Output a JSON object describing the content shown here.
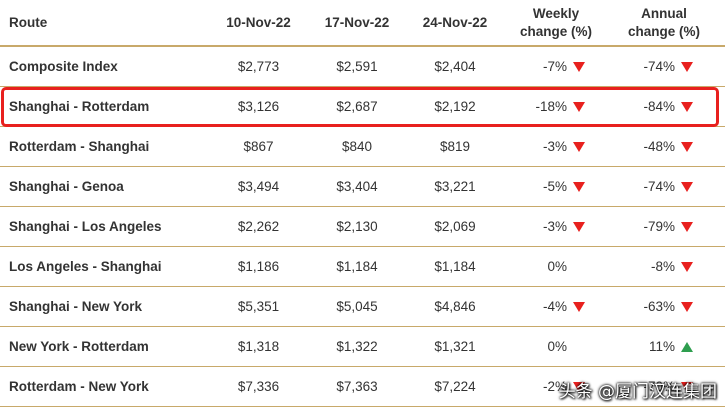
{
  "header": {
    "route": "Route",
    "date1": "10-Nov-22",
    "date2": "17-Nov-22",
    "date3": "24-Nov-22",
    "weekly_line1": "Weekly",
    "weekly_line2": "change (%)",
    "annual_line1": "Annual",
    "annual_line2": "change (%)"
  },
  "rows": [
    {
      "route": "Composite Index",
      "v1": "$2,773",
      "v2": "$2,591",
      "v3": "$2,404",
      "weekly": "-7%",
      "weekly_dir": "down",
      "annual": "-74%",
      "annual_dir": "down"
    },
    {
      "route": "Shanghai - Rotterdam",
      "v1": "$3,126",
      "v2": "$2,687",
      "v3": "$2,192",
      "weekly": "-18%",
      "weekly_dir": "down",
      "annual": "-84%",
      "annual_dir": "down"
    },
    {
      "route": "Rotterdam - Shanghai",
      "v1": "$867",
      "v2": "$840",
      "v3": "$819",
      "weekly": "-3%",
      "weekly_dir": "down",
      "annual": "-48%",
      "annual_dir": "down"
    },
    {
      "route": "Shanghai - Genoa",
      "v1": "$3,494",
      "v2": "$3,404",
      "v3": "$3,221",
      "weekly": "-5%",
      "weekly_dir": "down",
      "annual": "-74%",
      "annual_dir": "down"
    },
    {
      "route": "Shanghai - Los Angeles",
      "v1": "$2,262",
      "v2": "$2,130",
      "v3": "$2,069",
      "weekly": "-3%",
      "weekly_dir": "down",
      "annual": "-79%",
      "annual_dir": "down"
    },
    {
      "route": "Los Angeles - Shanghai",
      "v1": "$1,186",
      "v2": "$1,184",
      "v3": "$1,184",
      "weekly": "0%",
      "weekly_dir": "none",
      "annual": "-8%",
      "annual_dir": "down"
    },
    {
      "route": "Shanghai - New York",
      "v1": "$5,351",
      "v2": "$5,045",
      "v3": "$4,846",
      "weekly": "-4%",
      "weekly_dir": "down",
      "annual": "-63%",
      "annual_dir": "down"
    },
    {
      "route": "New York - Rotterdam",
      "v1": "$1,318",
      "v2": "$1,322",
      "v3": "$1,321",
      "weekly": "0%",
      "weekly_dir": "none",
      "annual": "11%",
      "annual_dir": "up"
    },
    {
      "route": "Rotterdam - New York",
      "v1": "$7,336",
      "v2": "$7,363",
      "v3": "$7,224",
      "weekly": "-2%",
      "weekly_dir": "down",
      "annual": "-70%",
      "annual_dir": "down"
    }
  ],
  "highlighted_row_index": 1,
  "colors": {
    "down_arrow": "#e8201e",
    "up_arrow": "#2e9e4f",
    "divider": "#c8a96a",
    "highlight_border": "#e8201e"
  },
  "watermark": "头条 @厦门汉连集团"
}
